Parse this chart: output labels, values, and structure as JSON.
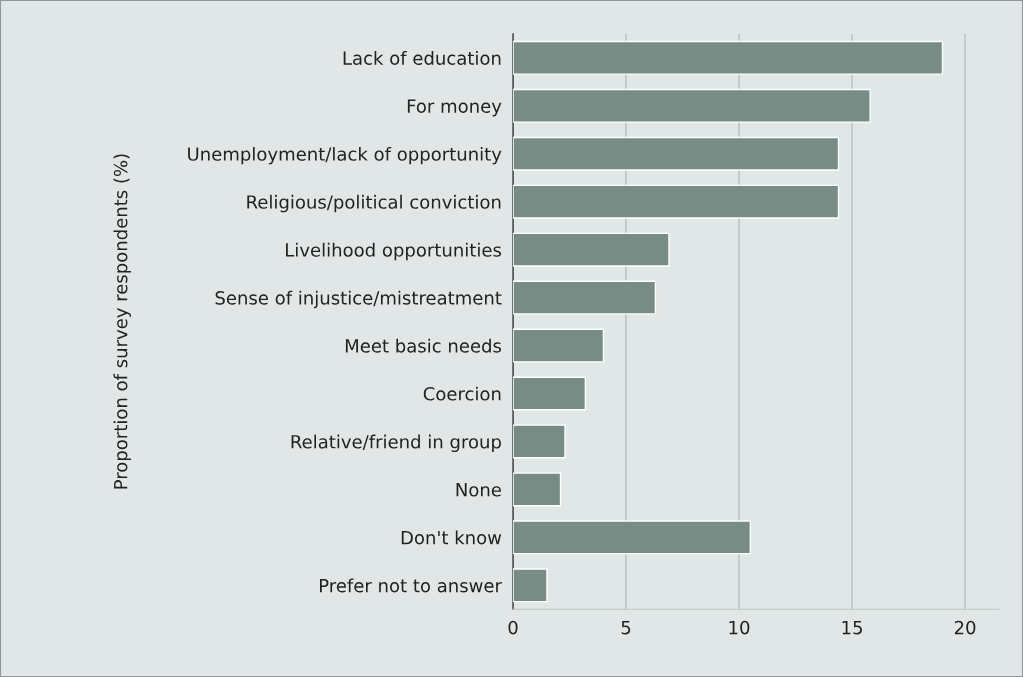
{
  "chart_data": {
    "type": "bar",
    "orientation": "horizontal",
    "ylabel": "Proportion of survey respondents (%)",
    "categories": [
      "Lack of education",
      "For money",
      "Unemployment/lack of opportunity",
      "Religious/political conviction",
      "Livelihood opportunities",
      "Sense of injustice/mistreatment",
      "Meet basic needs",
      "Coercion",
      "Relative/friend in group",
      "None",
      "Don't know",
      "Prefer not to answer"
    ],
    "values": [
      19.0,
      15.8,
      14.4,
      14.4,
      6.9,
      6.3,
      4.0,
      3.2,
      2.3,
      2.1,
      10.5,
      1.5
    ],
    "color": "#778c84",
    "xlim": [
      0,
      21.5
    ],
    "xticks": [
      0,
      5,
      10,
      15,
      20
    ],
    "grid": "x"
  }
}
